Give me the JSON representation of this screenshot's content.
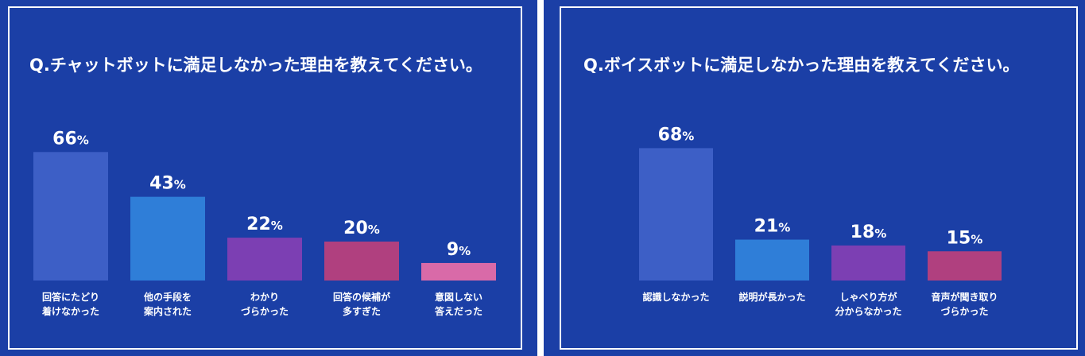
{
  "chart_data": [
    {
      "type": "bar",
      "title": "Q.チャットボットに満足しなかった理由を教えてください。",
      "unit": "%",
      "categories": [
        [
          "回答にたどり",
          "着けなかった"
        ],
        [
          "他の手段を",
          "案内された"
        ],
        [
          "わかり",
          "づらかった"
        ],
        [
          "回答の候補が",
          "多すぎた"
        ],
        [
          "意図しない",
          "答えだった"
        ]
      ],
      "values": [
        66,
        43,
        22,
        20,
        9
      ],
      "colors": [
        "#3d5fc6",
        "#2f7ed8",
        "#7c3fb3",
        "#b0407f",
        "#d96aa8"
      ],
      "grid": false
    },
    {
      "type": "bar",
      "title": "Q.ボイスボットに満足しなかった理由を教えてください。",
      "unit": "%",
      "categories": [
        [
          "認識しなかった"
        ],
        [
          "説明が長かった"
        ],
        [
          "しゃべり方が",
          "分からなかった"
        ],
        [
          "音声が聞き取り",
          "づらかった"
        ]
      ],
      "values": [
        68,
        21,
        18,
        15
      ],
      "colors": [
        "#3d5fc6",
        "#2f7ed8",
        "#7c3fb3",
        "#b0407f"
      ],
      "grid": false
    }
  ]
}
